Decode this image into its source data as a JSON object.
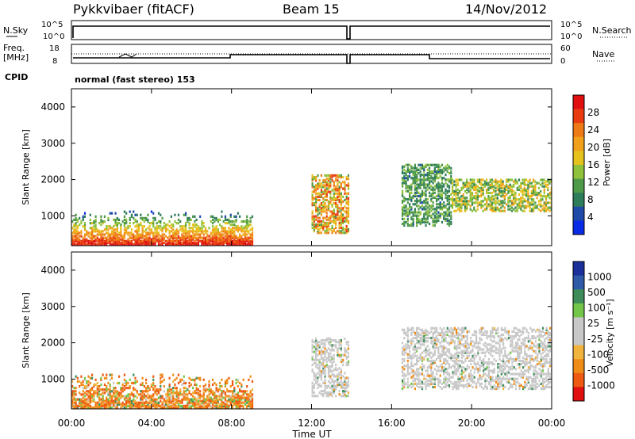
{
  "header": {
    "station": "Pykkvibaer (fitACF)",
    "beam": "Beam 15",
    "date": "14/Nov/2012"
  },
  "aux_panels": {
    "nsky_label": "N.Sky",
    "nsky_ticks": [
      "10^5",
      "10^0"
    ],
    "nsearch_label": "N.Search",
    "nsearch_ticks": [
      "10^5",
      "10^0"
    ],
    "freq_label_1": "Freq.",
    "freq_label_2": "[MHz]",
    "freq_ticks": [
      "18",
      "8"
    ],
    "nave_label": "Nave",
    "nave_ticks": [
      "60",
      "0"
    ],
    "cpid_label": "CPID",
    "cpid_text": "normal (fast stereo) 153"
  },
  "colors": {
    "power_scale": [
      "#0a2be6",
      "#1f4aa8",
      "#2e7d5a",
      "#4f9a48",
      "#8fc23a",
      "#e6c21e",
      "#f0a01a",
      "#ee7a16",
      "#e83c10",
      "#e01010"
    ],
    "velocity_scale": [
      "#e01010",
      "#ee5a12",
      "#ef8c18",
      "#f0b43c",
      "#c8c8c8",
      "#c8c8c8",
      "#74c64a",
      "#3e8c5a",
      "#2e5aa8",
      "#1a2f9a"
    ],
    "ground_scatter": "#c8c8c8"
  },
  "chart_data": [
    {
      "type": "heatmap",
      "panel": "power",
      "xlabel": "",
      "ylabel": "Slant Range [km]",
      "colorbar_label": "Power [dB]",
      "colorbar_ticks": [
        "28",
        "24",
        "20",
        "16",
        "12",
        "8",
        "4"
      ],
      "xlim": [
        "00:00",
        "24:00"
      ],
      "ylim": [
        180,
        4500
      ],
      "y_ticks": [
        "4000",
        "3000",
        "2000",
        "1000"
      ],
      "x_ticks": [
        "00:00",
        "04:00",
        "08:00",
        "12:00",
        "16:00",
        "20:00",
        "00:00"
      ],
      "zlim": [
        0,
        30
      ],
      "echo_regions": [
        {
          "t_start": 0.0,
          "t_end": 9.0,
          "r_low": 180,
          "r_high": 1100,
          "peak_power": 28
        },
        {
          "t_start": 12.0,
          "t_end": 13.8,
          "r_low": 500,
          "r_high": 2100,
          "peak_power": 26
        },
        {
          "t_start": 16.5,
          "t_end": 19.0,
          "r_low": 700,
          "r_high": 2400,
          "peak_power": 14
        },
        {
          "t_start": 19.0,
          "t_end": 24.0,
          "r_low": 1100,
          "r_high": 2000,
          "peak_power": 20
        }
      ]
    },
    {
      "type": "heatmap",
      "panel": "velocity",
      "xlabel": "Time UT",
      "ylabel": "Slant Range [km]",
      "colorbar_label": "Velocity [m s⁻¹]",
      "colorbar_ticks": [
        "1000",
        "500",
        "100",
        "25",
        "-25",
        "-100",
        "-500",
        "-1000"
      ],
      "xlim": [
        "00:00",
        "24:00"
      ],
      "ylim": [
        180,
        4500
      ],
      "y_ticks": [
        "4000",
        "3000",
        "2000",
        "1000"
      ],
      "x_ticks": [
        "00:00",
        "04:00",
        "08:00",
        "12:00",
        "16:00",
        "20:00",
        "00:00"
      ],
      "zlim": [
        -1200,
        1200
      ],
      "echo_regions": [
        {
          "t_start": 0.0,
          "t_end": 9.0,
          "r_low": 180,
          "r_high": 1100,
          "velocity": -300
        },
        {
          "t_start": 12.0,
          "t_end": 13.8,
          "r_low": 500,
          "r_high": 2100,
          "velocity": 0,
          "ground_scatter": true
        },
        {
          "t_start": 16.5,
          "t_end": 24.0,
          "r_low": 700,
          "r_high": 2400,
          "velocity": 0,
          "ground_scatter": true
        }
      ]
    }
  ]
}
